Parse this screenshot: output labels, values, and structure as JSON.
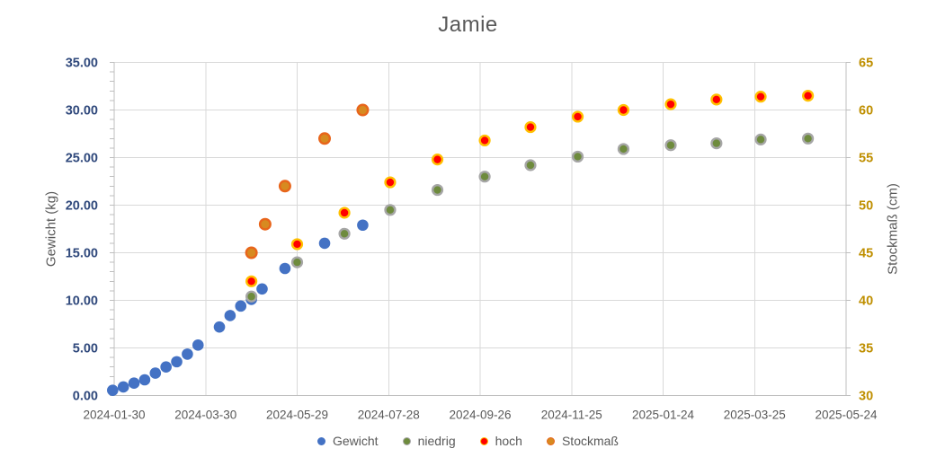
{
  "chart_data": {
    "type": "scatter",
    "title": "Jamie",
    "ylabel_left": "Gewicht (kg)",
    "ylabel_right": "Stockmaß (cm)",
    "grid": true,
    "legend_position": "bottom",
    "x_axis": {
      "start": "2024-01-30",
      "end": "2025-05-24",
      "tick_interval_days": 60,
      "tick_labels": [
        "2024-01-30",
        "2024-03-30",
        "2024-05-29",
        "2024-07-28",
        "2024-09-26",
        "2024-11-25",
        "2025-01-24",
        "2025-03-25",
        "2025-05-24"
      ]
    },
    "y_left": {
      "min": 0,
      "max": 35,
      "minor_step": 1,
      "tick_labels": [
        "35.00",
        "30.00",
        "25.00",
        "20.00",
        "15.00",
        "10.00",
        "5.00",
        "0.00"
      ]
    },
    "y_right": {
      "min": 30,
      "max": 65,
      "tick_labels": [
        "65",
        "60",
        "55",
        "50",
        "45",
        "40",
        "35",
        "30"
      ]
    },
    "colors": {
      "title_text": "#595959",
      "axis_title_text": "#595959",
      "x_tick_text": "#595959",
      "y_left_tick_text": "#30497C",
      "y_right_tick_text": "#BF8F00",
      "gridline": "#D9D9D9",
      "axis_line": "#BFBFBF",
      "legend_text": "#595959"
    },
    "series": [
      {
        "name": "Gewicht",
        "key": "gewicht",
        "axis": "left",
        "marker_fill": "#4472C4",
        "marker_stroke": "none",
        "marker_radius": 6.3,
        "points": [
          [
            "2024-01-29",
            0.55
          ],
          [
            "2024-02-05",
            0.9
          ],
          [
            "2024-02-12",
            1.3
          ],
          [
            "2024-02-19",
            1.65
          ],
          [
            "2024-02-26",
            2.35
          ],
          [
            "2024-03-04",
            3.0
          ],
          [
            "2024-03-11",
            3.55
          ],
          [
            "2024-03-18",
            4.35
          ],
          [
            "2024-03-25",
            5.3
          ],
          [
            "2024-04-08",
            7.2
          ],
          [
            "2024-04-15",
            8.4
          ],
          [
            "2024-04-22",
            9.4
          ],
          [
            "2024-04-29",
            10.1
          ],
          [
            "2024-05-06",
            11.2
          ],
          [
            "2024-05-21",
            13.35
          ],
          [
            "2024-06-16",
            16.0
          ],
          [
            "2024-07-11",
            17.9
          ]
        ]
      },
      {
        "name": "niedrig",
        "key": "niedrig",
        "axis": "left",
        "marker_fill": "#6E8B3D",
        "marker_stroke": "#A6A6A6",
        "marker_radius": 5.4,
        "points": [
          [
            "2024-04-29",
            10.4
          ],
          [
            "2024-05-29",
            14.0
          ],
          [
            "2024-06-29",
            17.0
          ],
          [
            "2024-07-29",
            19.5
          ],
          [
            "2024-08-29",
            21.6
          ],
          [
            "2024-09-29",
            23.0
          ],
          [
            "2024-10-29",
            24.2
          ],
          [
            "2024-11-29",
            25.1
          ],
          [
            "2024-12-29",
            25.9
          ],
          [
            "2025-01-29",
            26.3
          ],
          [
            "2025-02-28",
            26.5
          ],
          [
            "2025-03-29",
            26.9
          ],
          [
            "2025-04-29",
            27.0
          ]
        ]
      },
      {
        "name": "hoch",
        "key": "hoch",
        "axis": "left",
        "marker_fill": "#FF0000",
        "marker_stroke": "#FFC000",
        "marker_radius": 5.4,
        "points": [
          [
            "2024-04-29",
            12.0
          ],
          [
            "2024-05-29",
            15.9
          ],
          [
            "2024-06-29",
            19.2
          ],
          [
            "2024-07-29",
            22.4
          ],
          [
            "2024-08-29",
            24.8
          ],
          [
            "2024-09-29",
            26.8
          ],
          [
            "2024-10-29",
            28.2
          ],
          [
            "2024-11-29",
            29.3
          ],
          [
            "2024-12-29",
            30.0
          ],
          [
            "2025-01-29",
            30.6
          ],
          [
            "2025-02-28",
            31.1
          ],
          [
            "2025-03-29",
            31.4
          ],
          [
            "2025-04-29",
            31.5
          ]
        ]
      },
      {
        "name": "Stockmaß",
        "key": "stockmass",
        "axis": "right",
        "marker_fill": "#D78A20",
        "marker_stroke": "#E8651B",
        "marker_radius": 5.8,
        "points": [
          [
            "2024-04-29",
            45
          ],
          [
            "2024-05-08",
            48
          ],
          [
            "2024-05-21",
            52
          ],
          [
            "2024-06-16",
            57
          ],
          [
            "2024-07-11",
            60
          ]
        ]
      }
    ]
  }
}
